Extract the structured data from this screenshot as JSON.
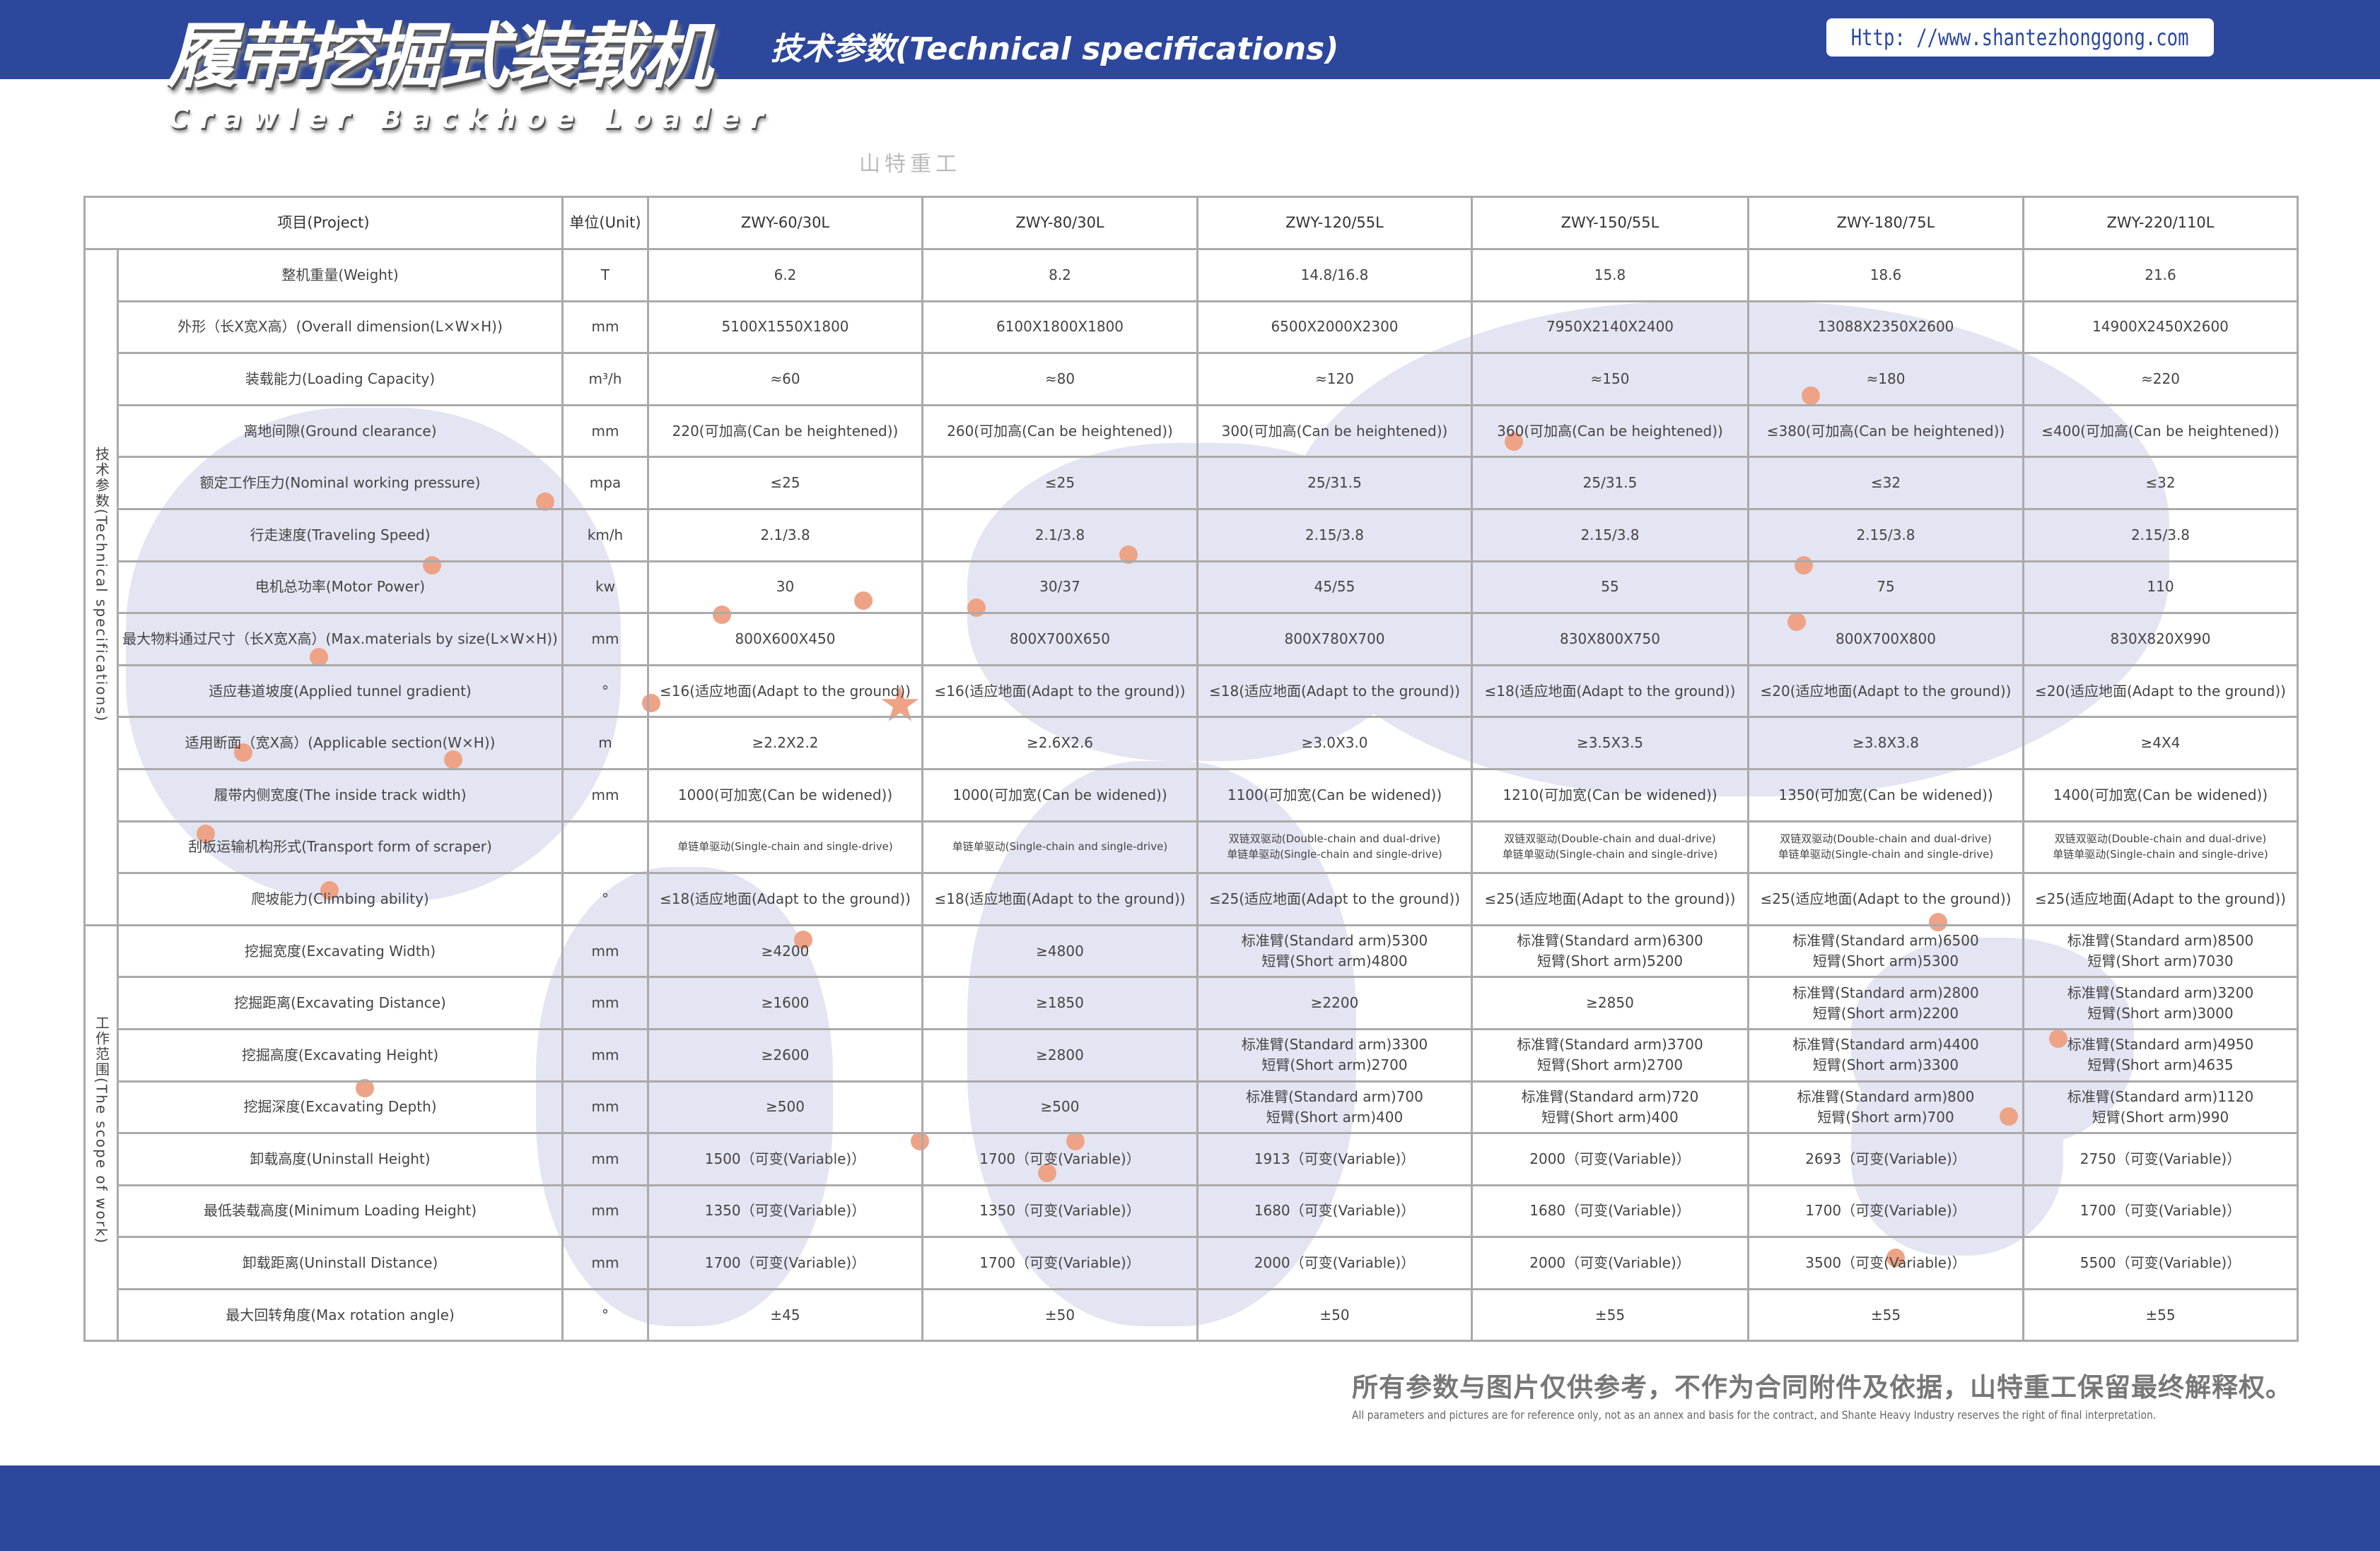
{
  "header": {
    "title_cn": "履带挖掘式装载机",
    "title_en": "Crawler Backhoe Loader",
    "subtitle": "技术参数(Technical specifications)",
    "url": "Http: //www.shantezhonggong.com",
    "brand_color": "#2c479c",
    "accent_color": "#eea386"
  },
  "watermark": "山特重工",
  "table": {
    "head": {
      "project": "项目(Project)",
      "unit": "单位(Unit)",
      "models": [
        "ZWY-60/30L",
        "ZWY-80/30L",
        "ZWY-120/55L",
        "ZWY-150/55L",
        "ZWY-180/75L",
        "ZWY-220/110L"
      ]
    },
    "sections": [
      {
        "label": "技术参数(Technical specifications)",
        "rows": 13
      },
      {
        "label": "工作范围(The scope of work)",
        "rows": 8
      }
    ],
    "rows": [
      {
        "label": "整机重量(Weight)",
        "unit": "T",
        "values": [
          "6.2",
          "8.2",
          "14.8/16.8",
          "15.8",
          "18.6",
          "21.6"
        ]
      },
      {
        "label": "外形（长X宽X高）(Overall dimension(L×W×H))",
        "unit": "mm",
        "values": [
          "5100X1550X1800",
          "6100X1800X1800",
          "6500X2000X2300",
          "7950X2140X2400",
          "13088X2350X2600",
          "14900X2450X2600"
        ]
      },
      {
        "label": "装载能力(Loading Capacity)",
        "unit": "m³/h",
        "values": [
          "≈60",
          "≈80",
          "≈120",
          "≈150",
          "≈180",
          "≈220"
        ]
      },
      {
        "label": "离地间隙(Ground clearance)",
        "unit": "mm",
        "values": [
          "220(可加高(Can be heightened))",
          "260(可加高(Can be heightened))",
          "300(可加高(Can be heightened))",
          "360(可加高(Can be heightened))",
          "≤380(可加高(Can be heightened))",
          "≤400(可加高(Can be heightened))"
        ]
      },
      {
        "label": "额定工作压力(Nominal working pressure)",
        "unit": "mpa",
        "values": [
          "≤25",
          "≤25",
          "25/31.5",
          "25/31.5",
          "≤32",
          "≤32"
        ]
      },
      {
        "label": "行走速度(Traveling Speed)",
        "unit": "km/h",
        "values": [
          "2.1/3.8",
          "2.1/3.8",
          "2.15/3.8",
          "2.15/3.8",
          "2.15/3.8",
          "2.15/3.8"
        ]
      },
      {
        "label": "电机总功率(Motor Power)",
        "unit": "kw",
        "values": [
          "30",
          "30/37",
          "45/55",
          "55",
          "75",
          "110"
        ]
      },
      {
        "label": "最大物料通过尺寸（长X宽X高）(Max.materials by size(L×W×H))",
        "unit": "mm",
        "values": [
          "800X600X450",
          "800X700X650",
          "800X780X700",
          "830X800X750",
          "800X700X800",
          "830X820X990"
        ]
      },
      {
        "label": "适应巷道坡度(Applied tunnel gradient)",
        "unit": "°",
        "values": [
          "≤16(适应地面(Adapt to the ground))",
          "≤16(适应地面(Adapt to the ground))",
          "≤18(适应地面(Adapt to the ground))",
          "≤18(适应地面(Adapt to the ground))",
          "≤20(适应地面(Adapt to the ground))",
          "≤20(适应地面(Adapt to the ground))"
        ]
      },
      {
        "label": "适用断面（宽X高）(Applicable section(W×H))",
        "unit": "m",
        "values": [
          "≥2.2X2.2",
          "≥2.6X2.6",
          "≥3.0X3.0",
          "≥3.5X3.5",
          "≥3.8X3.8",
          "≥4X4"
        ]
      },
      {
        "label": "履带内侧宽度(The inside track width)",
        "unit": "mm",
        "values": [
          "1000(可加宽(Can be widened))",
          "1000(可加宽(Can be widened))",
          "1100(可加宽(Can be widened))",
          "1210(可加宽(Can be widened))",
          "1350(可加宽(Can be widened))",
          "1400(可加宽(Can be widened))"
        ]
      },
      {
        "label": "刮板运输机构形式(Transport form of scraper)",
        "unit": "",
        "small": true,
        "values": [
          [
            "单链单驱动(Single-chain and single-drive)"
          ],
          [
            "单链单驱动(Single-chain and single-drive)"
          ],
          [
            "双链双驱动(Double-chain and dual-drive)",
            "单链单驱动(Single-chain and single-drive)"
          ],
          [
            "双链双驱动(Double-chain and dual-drive)",
            "单链单驱动(Single-chain and single-drive)"
          ],
          [
            "双链双驱动(Double-chain and dual-drive)",
            "单链单驱动(Single-chain and single-drive)"
          ],
          [
            "双链双驱动(Double-chain and dual-drive)",
            "单链单驱动(Single-chain and single-drive)"
          ]
        ]
      },
      {
        "label": "爬坡能力(Climbing ability)",
        "unit": "°",
        "values": [
          "≤18(适应地面(Adapt to the ground))",
          "≤18(适应地面(Adapt to the ground))",
          "≤25(适应地面(Adapt to the ground))",
          "≤25(适应地面(Adapt to the ground))",
          "≤25(适应地面(Adapt to the ground))",
          "≤25(适应地面(Adapt to the ground))"
        ]
      },
      {
        "label": "挖掘宽度(Excavating Width)",
        "unit": "mm",
        "values": [
          "≥4200",
          "≥4800",
          [
            "标准臂(Standard arm)5300",
            "短臂(Short arm)4800"
          ],
          [
            "标准臂(Standard arm)6300",
            "短臂(Short arm)5200"
          ],
          [
            "标准臂(Standard arm)6500",
            "短臂(Short arm)5300"
          ],
          [
            "标准臂(Standard arm)8500",
            "短臂(Short arm)7030"
          ]
        ]
      },
      {
        "label": "挖掘距离(Excavating Distance)",
        "unit": "mm",
        "values": [
          "≥1600",
          "≥1850",
          "≥2200",
          "≥2850",
          [
            "标准臂(Standard arm)2800",
            "短臂(Short arm)2200"
          ],
          [
            "标准臂(Standard arm)3200",
            "短臂(Short arm)3000"
          ]
        ]
      },
      {
        "label": "挖掘高度(Excavating Height)",
        "unit": "mm",
        "values": [
          "≥2600",
          "≥2800",
          [
            "标准臂(Standard arm)3300",
            "短臂(Short arm)2700"
          ],
          [
            "标准臂(Standard arm)3700",
            "短臂(Short arm)2700"
          ],
          [
            "标准臂(Standard arm)4400",
            "短臂(Short arm)3300"
          ],
          [
            "标准臂(Standard arm)4950",
            "短臂(Short arm)4635"
          ]
        ]
      },
      {
        "label": "挖掘深度(Excavating Depth)",
        "unit": "mm",
        "values": [
          "≥500",
          "≥500",
          [
            "标准臂(Standard arm)700",
            "短臂(Short arm)400"
          ],
          [
            "标准臂(Standard arm)720",
            "短臂(Short arm)400"
          ],
          [
            "标准臂(Standard arm)800",
            "短臂(Short arm)700"
          ],
          [
            "标准臂(Standard arm)1120",
            "短臂(Short arm)990"
          ]
        ]
      },
      {
        "label": "卸载高度(Uninstall Height)",
        "unit": "mm",
        "values": [
          "1500（可变(Variable)）",
          "1700（可变(Variable)）",
          "1913（可变(Variable)）",
          "2000（可变(Variable)）",
          "2693（可变(Variable)）",
          "2750（可变(Variable)）"
        ]
      },
      {
        "label": "最低装载高度(Minimum Loading Height)",
        "unit": "mm",
        "values": [
          "1350（可变(Variable)）",
          "1350（可变(Variable)）",
          "1680（可变(Variable)）",
          "1680（可变(Variable)）",
          "1700（可变(Variable)）",
          "1700（可变(Variable)）"
        ]
      },
      {
        "label": "卸载距离(Uninstall Distance)",
        "unit": "mm",
        "values": [
          "1700（可变(Variable)）",
          "1700（可变(Variable)）",
          "2000（可变(Variable)）",
          "2000（可变(Variable)）",
          "3500（可变(Variable)）",
          "5500（可变(Variable)）"
        ]
      },
      {
        "label": "最大回转角度(Max rotation angle)",
        "unit": "°",
        "values": [
          "±45",
          "±50",
          "±50",
          "±55",
          "±55",
          "±55"
        ]
      }
    ]
  },
  "footer": {
    "disclaimer_cn": "所有参数与图片仅供参考，不作为合同附件及依据，山特重工保留最终解释权。",
    "disclaimer_en": "All parameters and pictures are for reference only, not as an annex and basis for the contract, and Shante Heavy Industry reserves the right of final interpretation."
  }
}
